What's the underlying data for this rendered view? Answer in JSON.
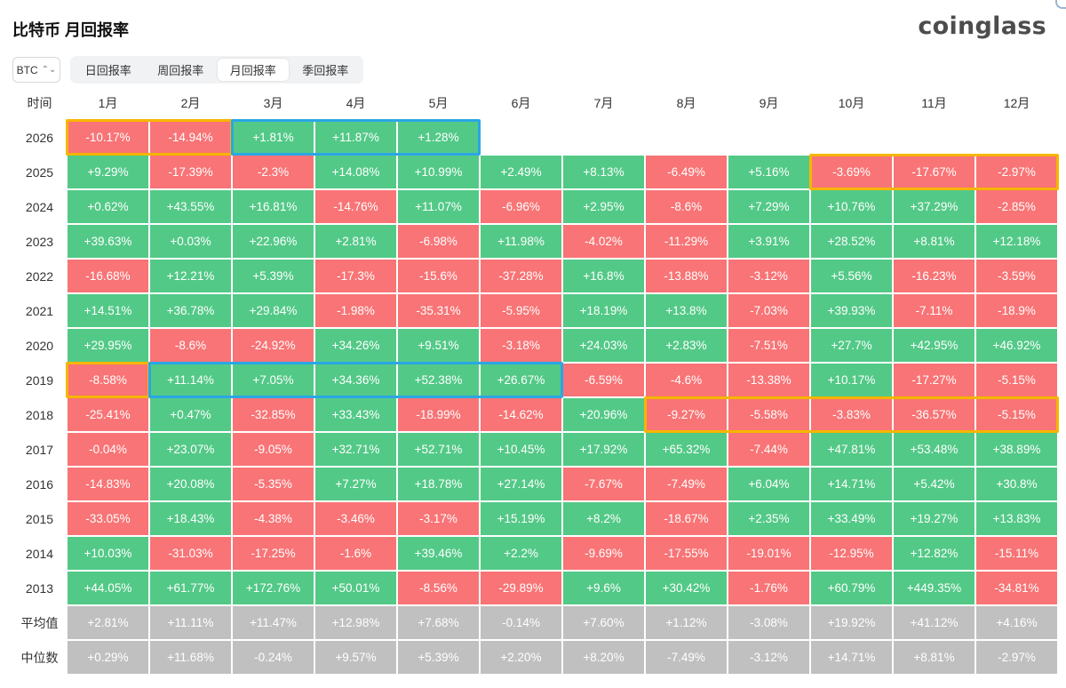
{
  "title": "比特币 月回报率",
  "logo": "coinglass",
  "coin_select": {
    "value": "BTC",
    "icon": "chevron-updown-icon"
  },
  "tabs": [
    {
      "label": "日回报率",
      "active": false
    },
    {
      "label": "周回报率",
      "active": false
    },
    {
      "label": "月回报率",
      "active": true
    },
    {
      "label": "季回报率",
      "active": false
    }
  ],
  "colors": {
    "positive": "#53c987",
    "negative": "#f87476",
    "stat": "#c0c0c0",
    "highlight_orange": "#f7b500",
    "highlight_blue": "#2aa6e6"
  },
  "table": {
    "corner_header": "时间",
    "months": [
      "1月",
      "2月",
      "3月",
      "4月",
      "5月",
      "6月",
      "7月",
      "8月",
      "9月",
      "10月",
      "11月",
      "12月"
    ],
    "rows": [
      {
        "year": "2026",
        "values": [
          "-10.17%",
          "-14.94%",
          "+1.81%",
          "+11.87%",
          "+1.28%",
          "",
          "",
          "",
          "",
          "",
          "",
          ""
        ]
      },
      {
        "year": "2025",
        "values": [
          "+9.29%",
          "-17.39%",
          "-2.3%",
          "+14.08%",
          "+10.99%",
          "+2.49%",
          "+8.13%",
          "-6.49%",
          "+5.16%",
          "-3.69%",
          "-17.67%",
          "-2.97%"
        ]
      },
      {
        "year": "2024",
        "values": [
          "+0.62%",
          "+43.55%",
          "+16.81%",
          "-14.76%",
          "+11.07%",
          "-6.96%",
          "+2.95%",
          "-8.6%",
          "+7.29%",
          "+10.76%",
          "+37.29%",
          "-2.85%"
        ]
      },
      {
        "year": "2023",
        "values": [
          "+39.63%",
          "+0.03%",
          "+22.96%",
          "+2.81%",
          "-6.98%",
          "+11.98%",
          "-4.02%",
          "-11.29%",
          "+3.91%",
          "+28.52%",
          "+8.81%",
          "+12.18%"
        ]
      },
      {
        "year": "2022",
        "values": [
          "-16.68%",
          "+12.21%",
          "+5.39%",
          "-17.3%",
          "-15.6%",
          "-37.28%",
          "+16.8%",
          "-13.88%",
          "-3.12%",
          "+5.56%",
          "-16.23%",
          "-3.59%"
        ]
      },
      {
        "year": "2021",
        "values": [
          "+14.51%",
          "+36.78%",
          "+29.84%",
          "-1.98%",
          "-35.31%",
          "-5.95%",
          "+18.19%",
          "+13.8%",
          "-7.03%",
          "+39.93%",
          "-7.11%",
          "-18.9%"
        ]
      },
      {
        "year": "2020",
        "values": [
          "+29.95%",
          "-8.6%",
          "-24.92%",
          "+34.26%",
          "+9.51%",
          "-3.18%",
          "+24.03%",
          "+2.83%",
          "-7.51%",
          "+27.7%",
          "+42.95%",
          "+46.92%"
        ]
      },
      {
        "year": "2019",
        "values": [
          "-8.58%",
          "+11.14%",
          "+7.05%",
          "+34.36%",
          "+52.38%",
          "+26.67%",
          "-6.59%",
          "-4.6%",
          "-13.38%",
          "+10.17%",
          "-17.27%",
          "-5.15%"
        ]
      },
      {
        "year": "2018",
        "values": [
          "-25.41%",
          "+0.47%",
          "-32.85%",
          "+33.43%",
          "-18.99%",
          "-14.62%",
          "+20.96%",
          "-9.27%",
          "-5.58%",
          "-3.83%",
          "-36.57%",
          "-5.15%"
        ]
      },
      {
        "year": "2017",
        "values": [
          "-0.04%",
          "+23.07%",
          "-9.05%",
          "+32.71%",
          "+52.71%",
          "+10.45%",
          "+17.92%",
          "+65.32%",
          "-7.44%",
          "+47.81%",
          "+53.48%",
          "+38.89%"
        ]
      },
      {
        "year": "2016",
        "values": [
          "-14.83%",
          "+20.08%",
          "-5.35%",
          "+7.27%",
          "+18.78%",
          "+27.14%",
          "-7.67%",
          "-7.49%",
          "+6.04%",
          "+14.71%",
          "+5.42%",
          "+30.8%"
        ]
      },
      {
        "year": "2015",
        "values": [
          "-33.05%",
          "+18.43%",
          "-4.38%",
          "-3.46%",
          "-3.17%",
          "+15.19%",
          "+8.2%",
          "-18.67%",
          "+2.35%",
          "+33.49%",
          "+19.27%",
          "+13.83%"
        ]
      },
      {
        "year": "2014",
        "values": [
          "+10.03%",
          "-31.03%",
          "-17.25%",
          "-1.6%",
          "+39.46%",
          "+2.2%",
          "-9.69%",
          "-17.55%",
          "-19.01%",
          "-12.95%",
          "+12.82%",
          "-15.11%"
        ]
      },
      {
        "year": "2013",
        "values": [
          "+44.05%",
          "+61.77%",
          "+172.76%",
          "+50.01%",
          "-8.56%",
          "-29.89%",
          "+9.6%",
          "+30.42%",
          "-1.76%",
          "+60.79%",
          "+449.35%",
          "-34.81%"
        ]
      }
    ],
    "stats": [
      {
        "label": "平均值",
        "values": [
          "+2.81%",
          "+11.11%",
          "+11.47%",
          "+12.98%",
          "+7.68%",
          "-0.14%",
          "+7.60%",
          "+1.12%",
          "-3.08%",
          "+19.92%",
          "+41.12%",
          "+4.16%"
        ]
      },
      {
        "label": "中位数",
        "values": [
          "+0.29%",
          "+11.68%",
          "-0.24%",
          "+9.57%",
          "+5.39%",
          "+2.20%",
          "+8.20%",
          "-7.49%",
          "-3.12%",
          "+14.71%",
          "+8.81%",
          "-2.97%"
        ]
      }
    ]
  },
  "highlights": [
    {
      "color": "orange",
      "row": 0,
      "col_start": 0,
      "col_end": 1
    },
    {
      "color": "blue",
      "row": 0,
      "col_start": 2,
      "col_end": 4
    },
    {
      "color": "orange",
      "row": 1,
      "col_start": 9,
      "col_end": 11
    },
    {
      "color": "orange",
      "row": 7,
      "col_start": 0,
      "col_end": 0
    },
    {
      "color": "blue",
      "row": 7,
      "col_start": 1,
      "col_end": 5
    },
    {
      "color": "orange",
      "row": 8,
      "col_start": 7,
      "col_end": 11
    }
  ]
}
